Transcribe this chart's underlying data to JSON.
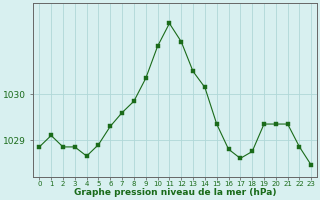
{
  "x": [
    0,
    1,
    2,
    3,
    4,
    5,
    6,
    7,
    8,
    9,
    10,
    11,
    12,
    13,
    14,
    15,
    16,
    17,
    18,
    19,
    20,
    21,
    22,
    23
  ],
  "y": [
    1028.85,
    1029.1,
    1028.85,
    1028.85,
    1028.65,
    1028.9,
    1029.3,
    1029.6,
    1029.85,
    1030.35,
    1031.05,
    1031.55,
    1031.15,
    1030.5,
    1030.15,
    1029.35,
    1028.8,
    1028.6,
    1028.75,
    1029.35,
    1029.35,
    1029.35,
    1028.85,
    1028.45
  ],
  "line_color": "#1a6b1a",
  "marker_color": "#1a6b1a",
  "bg_color": "#d8f0f0",
  "plot_bg": "#d8f0f0",
  "grid_color": "#b0d8d8",
  "ylabel_ticks": [
    1029,
    1030
  ],
  "xlabel": "Graphe pression niveau de la mer (hPa)",
  "xlabel_color": "#1a6b1a",
  "title": "",
  "ylim": [
    1028.2,
    1032.0
  ],
  "xlim": [
    -0.5,
    23.5
  ]
}
